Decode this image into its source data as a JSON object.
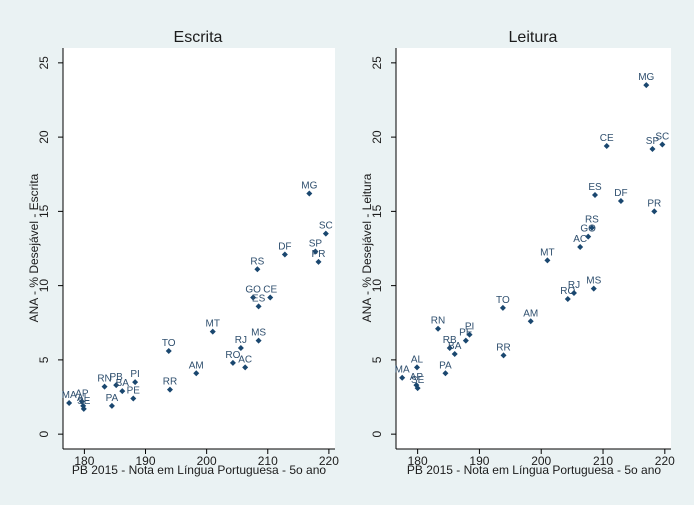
{
  "chart_data": [
    {
      "type": "scatter",
      "title": "Escrita",
      "xlabel": "PB 2015 - Nota em Língua Portuguesa - 5o ano",
      "ylabel": "ANA - % Desejável - Escrita",
      "xlim": [
        176.5,
        221
      ],
      "ylim": [
        -1,
        26
      ],
      "xticks": [
        180,
        190,
        200,
        210,
        220
      ],
      "yticks": [
        0,
        5,
        10,
        15,
        20,
        25
      ],
      "points": [
        {
          "label": "MA",
          "x": 177.5,
          "y": 2.1
        },
        {
          "label": "AP",
          "x": 179.6,
          "y": 2.2
        },
        {
          "label": "AL",
          "x": 179.8,
          "y": 1.9
        },
        {
          "label": "SE",
          "x": 179.9,
          "y": 1.7
        },
        {
          "label": "RN",
          "x": 183.3,
          "y": 3.2
        },
        {
          "label": "PB",
          "x": 185.2,
          "y": 3.3
        },
        {
          "label": "BA",
          "x": 186.2,
          "y": 2.9
        },
        {
          "label": "PI",
          "x": 188.3,
          "y": 3.5
        },
        {
          "label": "PE",
          "x": 188.0,
          "y": 2.4
        },
        {
          "label": "PA",
          "x": 184.5,
          "y": 1.9
        },
        {
          "label": "TO",
          "x": 193.8,
          "y": 5.6
        },
        {
          "label": "RR",
          "x": 194.0,
          "y": 3.0
        },
        {
          "label": "AM",
          "x": 198.3,
          "y": 4.1
        },
        {
          "label": "MT",
          "x": 201.0,
          "y": 6.9
        },
        {
          "label": "RO",
          "x": 204.3,
          "y": 4.8
        },
        {
          "label": "AC",
          "x": 206.3,
          "y": 4.5
        },
        {
          "label": "RJ",
          "x": 205.6,
          "y": 5.8
        },
        {
          "label": "MS",
          "x": 208.5,
          "y": 6.3
        },
        {
          "label": "GO",
          "x": 207.6,
          "y": 9.2
        },
        {
          "label": "CE",
          "x": 210.4,
          "y": 9.2
        },
        {
          "label": "ES",
          "x": 208.5,
          "y": 8.6
        },
        {
          "label": "RS",
          "x": 208.3,
          "y": 11.1
        },
        {
          "label": "DF",
          "x": 212.8,
          "y": 12.1
        },
        {
          "label": "MG",
          "x": 216.8,
          "y": 16.2
        },
        {
          "label": "SC",
          "x": 219.5,
          "y": 13.5
        },
        {
          "label": "SP",
          "x": 217.8,
          "y": 12.3
        },
        {
          "label": "PR",
          "x": 218.3,
          "y": 11.6
        }
      ]
    },
    {
      "type": "scatter",
      "title": "Leitura",
      "xlabel": "PB 2015 - Nota em Língua Portuguesa - 5o ano",
      "ylabel": "ANA - % Desejável - Leitura",
      "xlim": [
        176.5,
        221
      ],
      "ylim": [
        -1,
        26
      ],
      "xticks": [
        180,
        190,
        200,
        210,
        220
      ],
      "yticks": [
        0,
        5,
        10,
        15,
        20,
        25
      ],
      "points": [
        {
          "label": "MA",
          "x": 177.5,
          "y": 3.8
        },
        {
          "label": "AL",
          "x": 179.9,
          "y": 4.5
        },
        {
          "label": "AP",
          "x": 179.8,
          "y": 3.3
        },
        {
          "label": "SE",
          "x": 180.0,
          "y": 3.1
        },
        {
          "label": "RN",
          "x": 183.3,
          "y": 7.1
        },
        {
          "label": "RB",
          "x": 185.2,
          "y": 5.8
        },
        {
          "label": "BA",
          "x": 186.0,
          "y": 5.4
        },
        {
          "label": "PE",
          "x": 187.8,
          "y": 6.3
        },
        {
          "label": "PI",
          "x": 188.4,
          "y": 6.7
        },
        {
          "label": "PA",
          "x": 184.5,
          "y": 4.1
        },
        {
          "label": "TO",
          "x": 193.8,
          "y": 8.5
        },
        {
          "label": "RR",
          "x": 193.9,
          "y": 5.3
        },
        {
          "label": "AM",
          "x": 198.3,
          "y": 7.6
        },
        {
          "label": "MT",
          "x": 201.0,
          "y": 11.7
        },
        {
          "label": "RO",
          "x": 204.3,
          "y": 9.1
        },
        {
          "label": "RJ",
          "x": 205.3,
          "y": 9.5
        },
        {
          "label": "MS",
          "x": 208.5,
          "y": 9.8
        },
        {
          "label": "AC",
          "x": 206.3,
          "y": 12.6
        },
        {
          "label": "GO",
          "x": 207.6,
          "y": 13.3
        },
        {
          "label": "RS",
          "x": 208.2,
          "y": 13.9
        },
        {
          "label": "ES",
          "x": 208.7,
          "y": 16.1
        },
        {
          "label": "CE",
          "x": 210.6,
          "y": 19.4
        },
        {
          "label": "DF",
          "x": 212.9,
          "y": 15.7
        },
        {
          "label": "MG",
          "x": 217.0,
          "y": 23.5
        },
        {
          "label": "SP",
          "x": 218.0,
          "y": 19.2
        },
        {
          "label": "SC",
          "x": 219.6,
          "y": 19.5
        },
        {
          "label": "PR",
          "x": 218.3,
          "y": 15.0
        }
      ]
    }
  ]
}
